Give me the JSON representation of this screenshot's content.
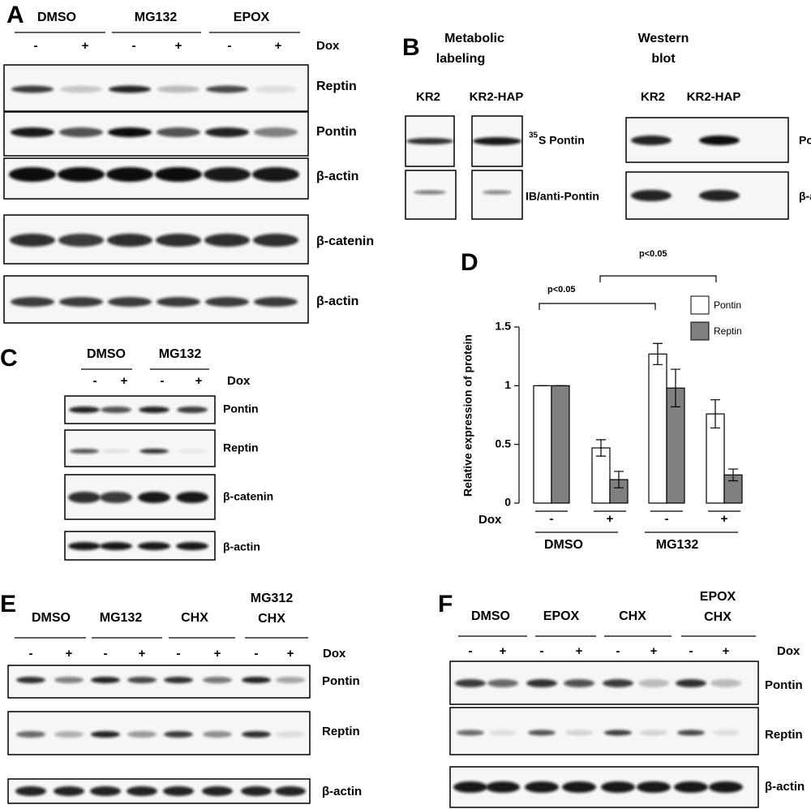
{
  "panels": {
    "A": {
      "letter": "A",
      "groups": [
        "DMSO",
        "MG132",
        "EPOX"
      ],
      "lanes": [
        "-",
        "+",
        "-",
        "+",
        "-",
        "+"
      ],
      "treatment": "Dox",
      "rows": [
        "Reptin",
        "Pontin",
        "β-actin",
        "β-catenin",
        "β-actin"
      ]
    },
    "B": {
      "letter": "B",
      "metabolic": [
        "Metabolic",
        "labeling"
      ],
      "western": [
        "Western",
        "blot"
      ],
      "lanes_left": [
        "KR2",
        "KR2-HAP"
      ],
      "lanes_right": [
        "KR2",
        "KR2-HAP"
      ],
      "isotope": "35",
      "rows_left": [
        "S Pontin",
        "IB/anti-Pontin"
      ],
      "rows_right": [
        "Pontin",
        "β-actin"
      ]
    },
    "C": {
      "letter": "C",
      "groups": [
        "DMSO",
        "MG132"
      ],
      "lanes": [
        "-",
        "+",
        "-",
        "+"
      ],
      "treatment": "Dox",
      "rows": [
        "Pontin",
        "Reptin",
        "β-catenin",
        "β-actin"
      ]
    },
    "E": {
      "letter": "E",
      "groups": [
        [
          "DMSO"
        ],
        [
          "MG132"
        ],
        [
          "CHX"
        ],
        [
          "MG312",
          "CHX"
        ]
      ],
      "lanes": [
        "-",
        "+",
        "-",
        "+",
        "-",
        "+",
        "-",
        "+"
      ],
      "treatment": "Dox",
      "rows": [
        "Pontin",
        "Reptin",
        "β-actin"
      ]
    },
    "F": {
      "letter": "F",
      "groups": [
        [
          "DMSO"
        ],
        [
          "EPOX"
        ],
        [
          "CHX"
        ],
        [
          "EPOX",
          "CHX"
        ]
      ],
      "lanes": [
        "-",
        "+",
        "-",
        "+",
        "-",
        "+",
        "-",
        "+"
      ],
      "treatment": "Dox",
      "rows": [
        "Pontin",
        "Reptin",
        "β-actin"
      ]
    }
  },
  "chart_data": {
    "type": "bar",
    "letter": "D",
    "ylabel": "Relative expression of protein",
    "xlabel": "Dox",
    "categories": [
      "-",
      "+",
      "-",
      "+"
    ],
    "groups": [
      "DMSO",
      "MG132"
    ],
    "series": [
      {
        "name": "Pontin",
        "color": "#ffffff",
        "values": [
          1,
          0.47,
          1.27,
          0.76
        ],
        "errors": [
          0,
          0.07,
          0.09,
          0.12
        ]
      },
      {
        "name": "Reptin",
        "color": "#808080",
        "values": [
          1,
          0.2,
          0.98,
          0.24
        ],
        "errors": [
          0,
          0.07,
          0.16,
          0.05
        ]
      }
    ],
    "ylim": [
      0,
      1.5
    ],
    "yticks": [
      0,
      0.5,
      1,
      1.5
    ],
    "annotations": [
      "p<0.05",
      "p<0.05"
    ]
  }
}
